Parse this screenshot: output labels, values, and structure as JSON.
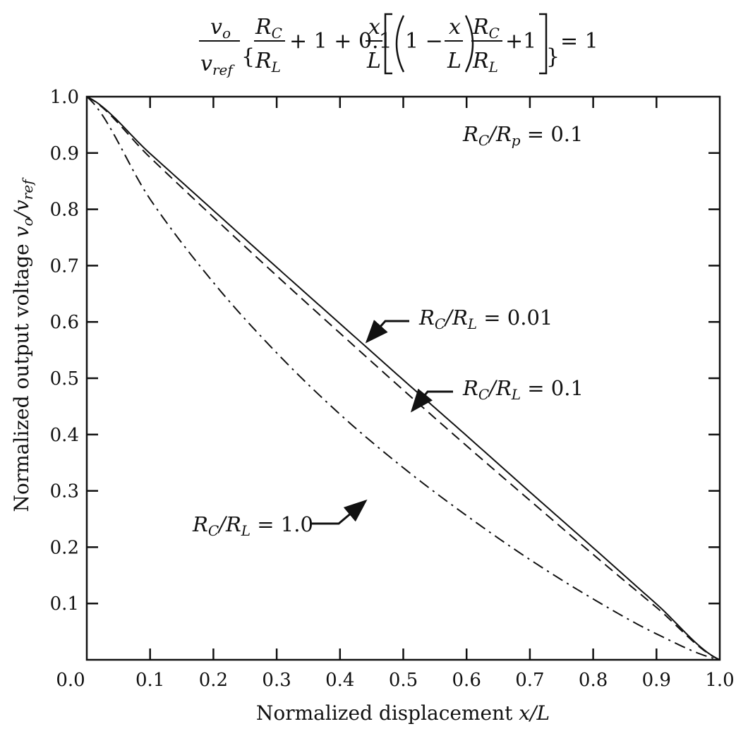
{
  "chart_data": {
    "type": "line",
    "title": "",
    "xlabel": {
      "text": "Normalized displacement ",
      "var": "x/L"
    },
    "ylabel": {
      "text": "Normalized output voltage ",
      "v": "v",
      "o": "o",
      "slash": "/",
      "ref": "ref"
    },
    "xlim": [
      0,
      1
    ],
    "ylim": [
      0,
      1
    ],
    "grid": false,
    "x_ticks": [
      "0.1",
      "0.2",
      "0.3",
      "0.4",
      "0.5",
      "0.6",
      "0.7",
      "0.8",
      "0.9",
      "1.0"
    ],
    "y_ticks": [
      "0.1",
      "0.2",
      "0.3",
      "0.4",
      "0.5",
      "0.6",
      "0.7",
      "0.8",
      "0.9",
      "1.0"
    ],
    "origin_label": "0.0",
    "equation": {
      "v": "v",
      "o": "o",
      "ref": "ref",
      "R": "R",
      "C": "C",
      "L": "L",
      "plus1": "+ 1 + 0.1",
      "x": "x",
      "one_minus": "1 −",
      "plus1b": "+1",
      "eq1": "= 1"
    },
    "param_text": {
      "R": "R",
      "C": "C",
      "slash": "/",
      "p": "p",
      "value": " = 0.1"
    },
    "series": [
      {
        "name": "R_C/R_L = 0.01",
        "rc_rl": 0.01,
        "style": "solid",
        "x": [
          0,
          0.1,
          0.2,
          0.3,
          0.4,
          0.5,
          0.6,
          0.7,
          0.8,
          0.9,
          1.0
        ],
        "y": [
          1.0,
          0.899,
          0.798,
          0.697,
          0.597,
          0.497,
          0.398,
          0.298,
          0.199,
          0.099,
          0.0
        ]
      },
      {
        "name": "R_C/R_L = 0.1",
        "rc_rl": 0.1,
        "style": "dashed",
        "x": [
          0,
          0.1,
          0.2,
          0.3,
          0.4,
          0.5,
          0.6,
          0.7,
          0.8,
          0.9,
          1.0
        ],
        "y": [
          1.0,
          0.892,
          0.786,
          0.682,
          0.58,
          0.479,
          0.38,
          0.283,
          0.187,
          0.093,
          0.0
        ]
      },
      {
        "name": "R_C/R_L = 1.0",
        "rc_rl": 1.0,
        "style": "dashdot",
        "x": [
          0,
          0.1,
          0.2,
          0.3,
          0.4,
          0.5,
          0.6,
          0.7,
          0.8,
          0.9,
          1.0
        ],
        "y": [
          1.0,
          0.818,
          0.67,
          0.545,
          0.436,
          0.341,
          0.256,
          0.178,
          0.108,
          0.046,
          0.0
        ]
      }
    ],
    "annotations": [
      {
        "R": "R",
        "C": "C",
        "L": "L",
        "value": " = 0.01",
        "series": 0
      },
      {
        "R": "R",
        "C": "C",
        "L": "L",
        "value": " = 0.1",
        "series": 1
      },
      {
        "R": "R",
        "C": "C",
        "L": "L",
        "value": " = 1.0",
        "series": 2
      }
    ],
    "colors": {
      "line": "#111111",
      "axis": "#111111"
    }
  }
}
